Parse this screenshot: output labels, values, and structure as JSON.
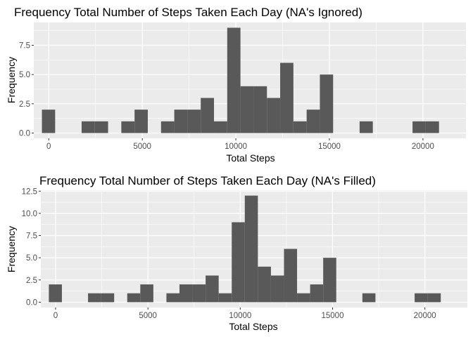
{
  "chart_data": [
    {
      "type": "bar",
      "title": "Frequency Total Number of Steps Taken Each Day (NA's Ignored)",
      "xlabel": "Total Steps",
      "ylabel": "Frequency",
      "xlim": [
        -800,
        22300
      ],
      "ylim": [
        -0.45,
        9.45
      ],
      "xticks": [
        "0",
        "5000",
        "10000",
        "15000",
        "20000"
      ],
      "yticks": [
        "0.0",
        "2.5",
        "5.0",
        "7.5"
      ],
      "bin_width": 707.5,
      "bin_centers": [
        -12.1,
        695.4,
        1402.9,
        2110.4,
        2817.9,
        3525.4,
        4232.9,
        4940.4,
        5647.9,
        6355.4,
        7062.9,
        7770.4,
        8477.9,
        9185.4,
        9892.9,
        10600.4,
        11307.9,
        12015.4,
        12722.9,
        13430.4,
        14137.9,
        14845.4,
        15552.9,
        16260.4,
        16967.9,
        17675.4,
        18382.9,
        19090.4,
        19797.9,
        20505.4,
        21212.9
      ],
      "values": [
        2,
        0,
        0,
        1,
        1,
        0,
        1,
        2,
        0,
        1,
        2,
        2,
        3,
        1,
        9,
        4,
        4,
        3,
        6,
        1,
        2,
        5,
        0,
        0,
        1,
        0,
        0,
        0,
        1,
        1,
        0
      ],
      "grid": true,
      "color": "#595959"
    },
    {
      "type": "bar",
      "title": "Frequency Total Number of Steps Taken Each Day (NA's Filled)",
      "xlabel": "Total Steps",
      "ylabel": "Frequency",
      "xlim": [
        -800,
        22300
      ],
      "ylim": [
        -0.6,
        12.6
      ],
      "xticks": [
        "0",
        "5000",
        "10000",
        "15000",
        "20000"
      ],
      "yticks": [
        "0.0",
        "2.5",
        "5.0",
        "7.5",
        "10.0",
        "12.5"
      ],
      "bin_width": 707.5,
      "bin_centers": [
        -12.1,
        695.4,
        1402.9,
        2110.4,
        2817.9,
        3525.4,
        4232.9,
        4940.4,
        5647.9,
        6355.4,
        7062.9,
        7770.4,
        8477.9,
        9185.4,
        9892.9,
        10600.4,
        11307.9,
        12015.4,
        12722.9,
        13430.4,
        14137.9,
        14845.4,
        15552.9,
        16260.4,
        16967.9,
        17675.4,
        18382.9,
        19090.4,
        19797.9,
        20505.4,
        21212.9
      ],
      "values": [
        2,
        0,
        0,
        1,
        1,
        0,
        1,
        2,
        0,
        1,
        2,
        2,
        3,
        1,
        9,
        12,
        4,
        3,
        6,
        1,
        2,
        5,
        0,
        0,
        1,
        0,
        0,
        0,
        1,
        1,
        0
      ],
      "grid": true,
      "color": "#595959"
    }
  ]
}
